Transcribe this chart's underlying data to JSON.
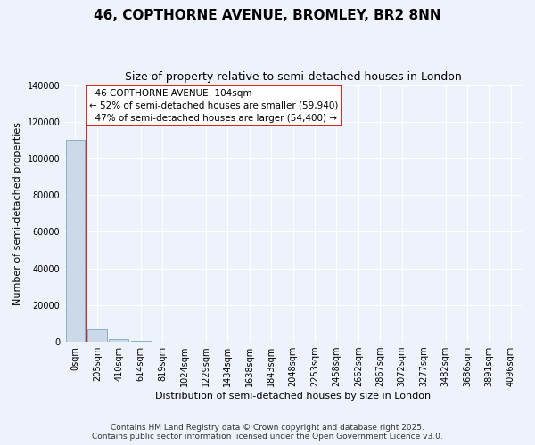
{
  "title": "46, COPTHORNE AVENUE, BROMLEY, BR2 8NN",
  "subtitle": "Size of property relative to semi-detached houses in London",
  "xlabel": "Distribution of semi-detached houses by size in London",
  "ylabel": "Number of semi-detached properties",
  "bin_labels": [
    "0sqm",
    "205sqm",
    "410sqm",
    "614sqm",
    "819sqm",
    "1024sqm",
    "1229sqm",
    "1434sqm",
    "1638sqm",
    "1843sqm",
    "2048sqm",
    "2253sqm",
    "2458sqm",
    "2662sqm",
    "2867sqm",
    "3072sqm",
    "3277sqm",
    "3482sqm",
    "3686sqm",
    "3891sqm",
    "4096sqm"
  ],
  "bar_values": [
    110000,
    6800,
    1200,
    400,
    200,
    120,
    80,
    60,
    50,
    40,
    35,
    30,
    25,
    20,
    18,
    15,
    12,
    10,
    9,
    8,
    7
  ],
  "bar_color": "#ccd9e8",
  "bar_edge_color": "#6699bb",
  "property_label": "46 COPTHORNE AVENUE: 104sqm",
  "pct_smaller": 52,
  "pct_smaller_count": "59,940",
  "pct_larger": 47,
  "pct_larger_count": "54,400",
  "vline_color": "#cc0000",
  "annotation_box_edge": "#cc0000",
  "ylim": [
    0,
    140000
  ],
  "yticks": [
    0,
    20000,
    40000,
    60000,
    80000,
    100000,
    120000,
    140000
  ],
  "footer": "Contains HM Land Registry data © Crown copyright and database right 2025.\nContains public sector information licensed under the Open Government Licence v3.0.",
  "bg_color": "#eef2fb",
  "grid_color": "#ffffff",
  "title_fontsize": 11,
  "subtitle_fontsize": 9,
  "ylabel_fontsize": 8,
  "xlabel_fontsize": 8,
  "annot_fontsize": 7.5,
  "tick_fontsize": 7,
  "footer_fontsize": 6.5
}
